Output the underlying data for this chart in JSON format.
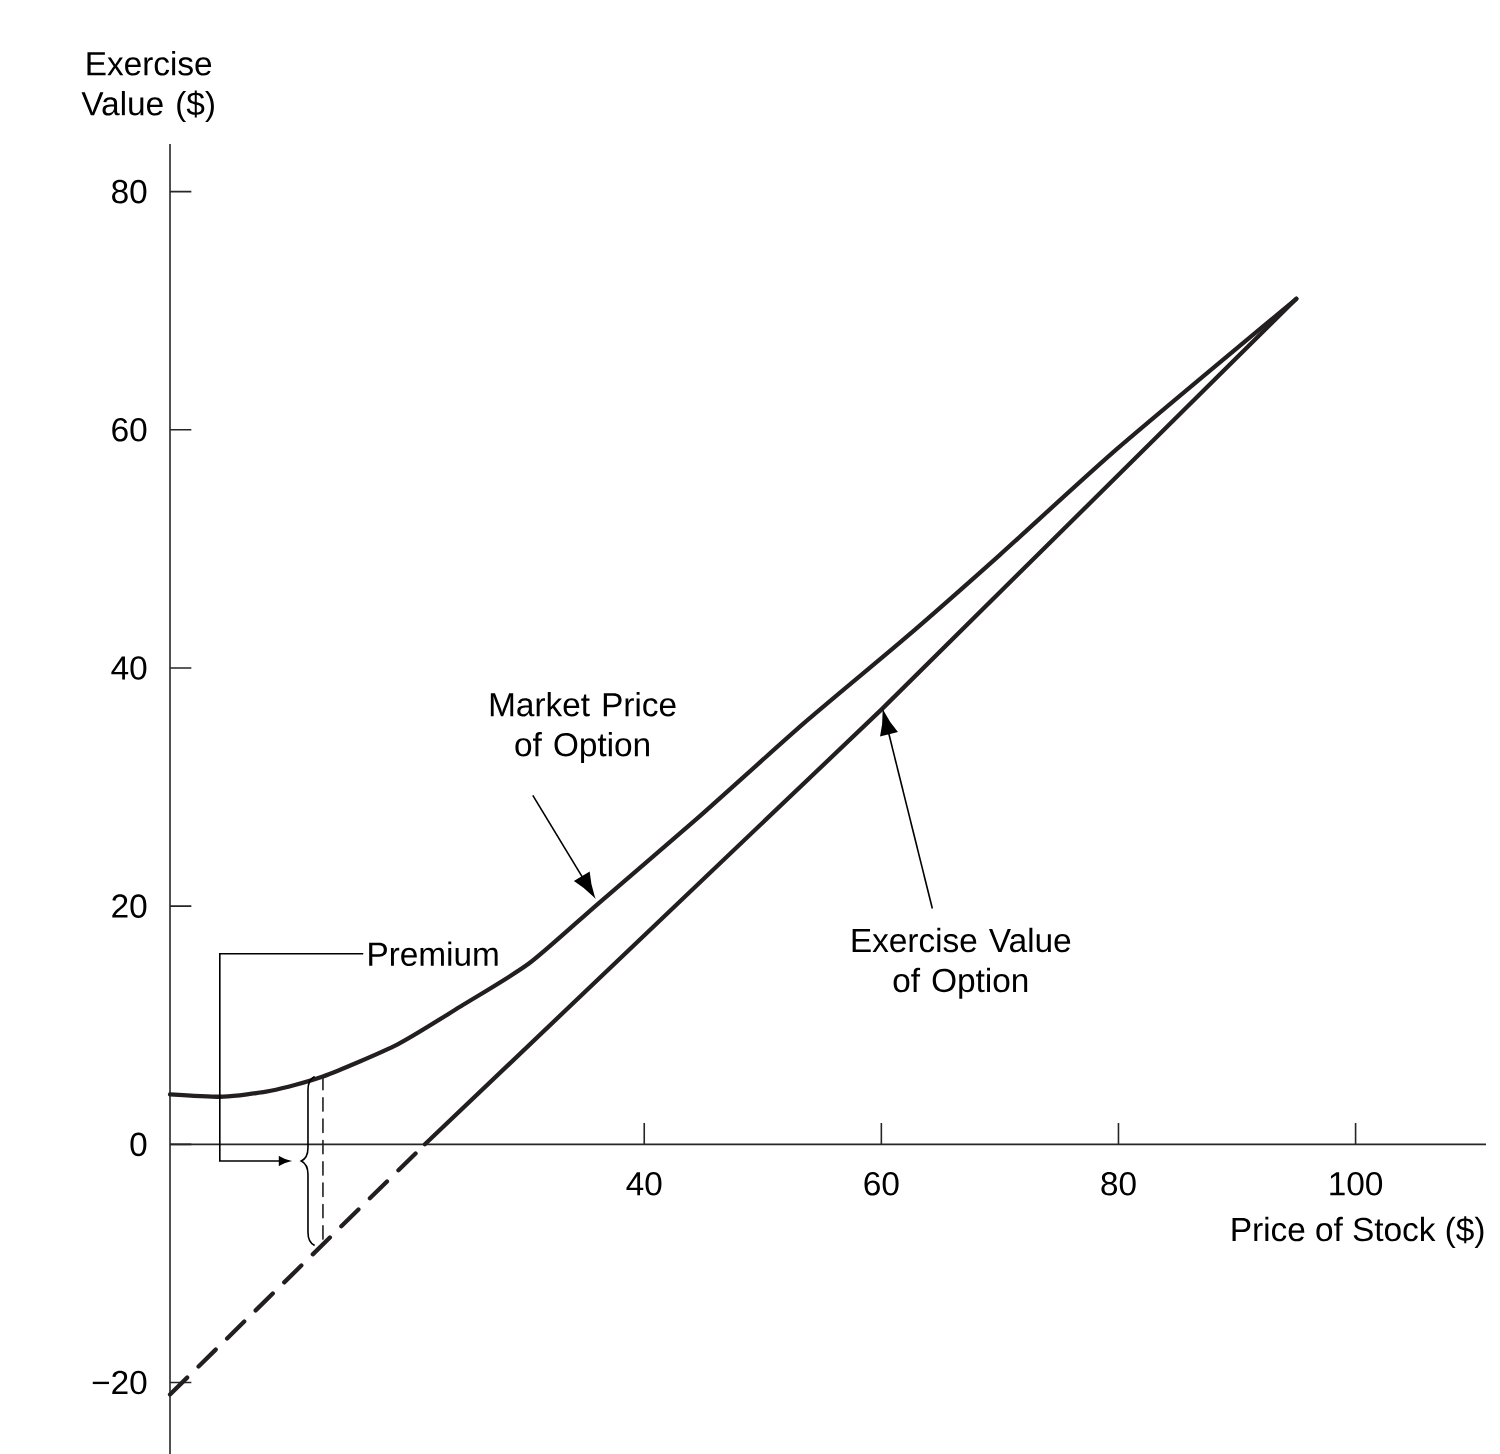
{
  "chart_data": {
    "type": "line",
    "xlabel": "Price of Stock ($)",
    "ylabel": "Exercise Value ($)",
    "xlim": [
      0,
      111
    ],
    "ylim": [
      -26,
      84
    ],
    "xticks": [
      40,
      60,
      80,
      100
    ],
    "yticks": [
      {
        "value": -20,
        "label": "−20"
      },
      0,
      20,
      40,
      60,
      80
    ],
    "series": [
      {
        "color": "#231f20",
        "x": [
          0,
          4.5,
          8.5,
          12.9,
          19.2,
          24.7,
          30.3,
          36.1,
          44.4,
          53.4,
          62,
          70,
          80,
          95
        ],
        "values": [
          4.2,
          4,
          4.5,
          5.7,
          8.4,
          11.7,
          15.2,
          20.2,
          27.3,
          35.3,
          42.5,
          49.5,
          58.5,
          71
        ]
      },
      {
        "color": "#231f20",
        "x": [
          0,
          21.5
        ],
        "values": [
          -21,
          0
        ],
        "line_style": "dashed"
      },
      {
        "color": "#231f20",
        "x": [
          21.5,
          60,
          95
        ],
        "values": [
          0,
          36.5,
          71
        ]
      },
      {
        "color": "#231f20",
        "x": [
          12.9,
          12.9
        ],
        "values": [
          5.7,
          -8.5
        ],
        "line_style": "dashed"
      }
    ],
    "annotations": [
      "Market Price of Option",
      "Exercise Value of Option",
      "Premium"
    ]
  }
}
